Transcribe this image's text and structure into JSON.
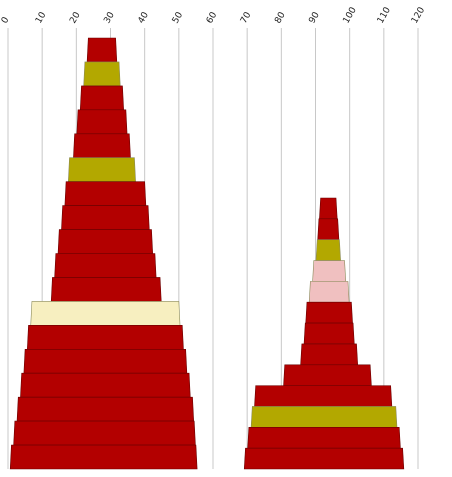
{
  "chart_data": {
    "type": "area",
    "title": "",
    "xlabel": "",
    "ylabel": "",
    "x_axis": {
      "ticks": [
        0,
        10,
        20,
        30,
        40,
        50,
        60,
        70,
        80,
        90,
        100,
        110,
        120
      ],
      "range": [
        0,
        120
      ]
    },
    "grid": true,
    "colors": {
      "red": "#b30000",
      "olive": "#b3a800",
      "pink": "#f0c0c0",
      "cream": "#f7efc0",
      "grid": "#c8c8c8"
    },
    "stacks": [
      {
        "bands": [
          {
            "left": 23.5,
            "right": 31.5,
            "color": "red"
          },
          {
            "left": 22.5,
            "right": 32.5,
            "color": "olive"
          },
          {
            "left": 21.5,
            "right": 33.5,
            "color": "red"
          },
          {
            "left": 20.5,
            "right": 34.5,
            "color": "red"
          },
          {
            "left": 19.5,
            "right": 35.5,
            "color": "red"
          },
          {
            "left": 18.0,
            "right": 37.0,
            "color": "olive"
          },
          {
            "left": 17.0,
            "right": 40.0,
            "color": "red"
          },
          {
            "left": 16.0,
            "right": 41.0,
            "color": "red"
          },
          {
            "left": 15.0,
            "right": 42.0,
            "color": "red"
          },
          {
            "left": 14.0,
            "right": 43.0,
            "color": "red"
          },
          {
            "left": 13.0,
            "right": 44.5,
            "color": "red"
          },
          {
            "left": 7.0,
            "right": 50.0,
            "color": "cream"
          },
          {
            "left": 6.0,
            "right": 51.0,
            "color": "red"
          },
          {
            "left": 5.0,
            "right": 52.0,
            "color": "red"
          },
          {
            "left": 4.0,
            "right": 53.0,
            "color": "red"
          },
          {
            "left": 3.0,
            "right": 54.0,
            "color": "red"
          },
          {
            "left": 2.0,
            "right": 54.5,
            "color": "red"
          },
          {
            "left": 1.0,
            "right": 55.0,
            "color": "red"
          }
        ]
      },
      {
        "bands": [
          {
            "left": 91.5,
            "right": 96.0,
            "color": "red"
          },
          {
            "left": 91.0,
            "right": 96.5,
            "color": "red"
          },
          {
            "left": 90.5,
            "right": 97.0,
            "color": "olive"
          },
          {
            "left": 89.5,
            "right": 98.5,
            "color": "pink"
          },
          {
            "left": 88.5,
            "right": 99.5,
            "color": "pink"
          },
          {
            "left": 87.5,
            "right": 100.5,
            "color": "red"
          },
          {
            "left": 87.0,
            "right": 101.0,
            "color": "red"
          },
          {
            "left": 86.0,
            "right": 102.0,
            "color": "red"
          },
          {
            "left": 81.0,
            "right": 106.0,
            "color": "red"
          },
          {
            "left": 72.5,
            "right": 112.0,
            "color": "red"
          },
          {
            "left": 71.5,
            "right": 113.5,
            "color": "olive"
          },
          {
            "left": 70.5,
            "right": 114.5,
            "color": "red"
          },
          {
            "left": 69.5,
            "right": 115.5,
            "color": "red"
          }
        ]
      }
    ]
  }
}
